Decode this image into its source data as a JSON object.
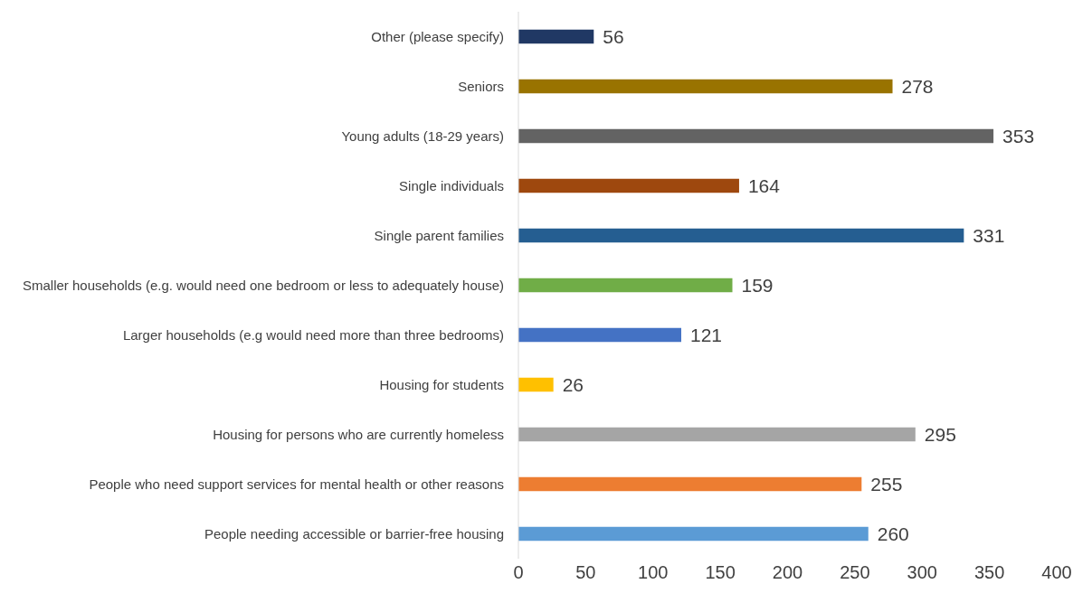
{
  "chart_data": {
    "type": "bar",
    "orientation": "horizontal",
    "categories": [
      "Other (please specify)",
      "Seniors",
      "Young adults (18-29 years)",
      "Single individuals",
      "Single parent families",
      "Smaller households (e.g. would need one bedroom or less to adequately house)",
      "Larger households (e.g would need more than three bedrooms)",
      "Housing for students",
      "Housing for persons who are currently homeless",
      "People who need support services for mental health or other reasons",
      "People needing accessible or barrier-free housing"
    ],
    "values": [
      56,
      278,
      353,
      164,
      331,
      159,
      121,
      26,
      295,
      255,
      260
    ],
    "colors": [
      "#203864",
      "#997300",
      "#636363",
      "#9e480e",
      "#255e91",
      "#70ad47",
      "#4472c4",
      "#ffc000",
      "#a5a5a5",
      "#ed7d31",
      "#5b9bd5"
    ],
    "xlim": [
      0,
      400
    ],
    "xticks": [
      0,
      50,
      100,
      150,
      200,
      250,
      300,
      350,
      400
    ],
    "data_labels": true
  }
}
